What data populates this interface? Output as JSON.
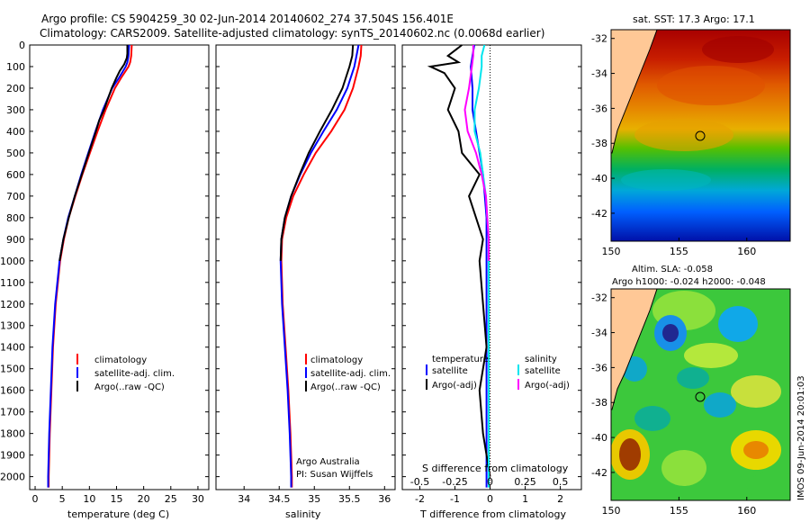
{
  "titles": {
    "line1": "Argo profile: CS 5904259_30 02-Jun-2014 20140602_274 37.504S 156.401E",
    "line2": "Climatology: CARS2009. Satellite-adjusted climatology: synTS_20140602.nc (0.0068d earlier)"
  },
  "colors": {
    "climatology": "#ff0000",
    "satellite": "#0000ff",
    "argo": "#000000",
    "salinity_satellite": "#00e5ee",
    "salinity_argo": "#ff00ff"
  },
  "depth_axis": {
    "ticks": [
      "0",
      "100",
      "200",
      "300",
      "400",
      "500",
      "600",
      "700",
      "800",
      "900",
      "1000",
      "1100",
      "1200",
      "1300",
      "1400",
      "1500",
      "1600",
      "1700",
      "1800",
      "1900",
      "2000"
    ],
    "range": [
      0,
      2060
    ]
  },
  "chart_data": [
    {
      "type": "line",
      "id": "temperature",
      "xlabel": "temperature (deg C)",
      "xlim": [
        -1,
        32
      ],
      "xticks": [
        "0",
        "5",
        "10",
        "15",
        "20",
        "25",
        "30"
      ],
      "legend": [
        "climatology",
        "satellite-adj. clim.",
        "Argo(..raw -QC)"
      ],
      "series": [
        {
          "name": "climatology",
          "depth": [
            0,
            50,
            80,
            100,
            150,
            200,
            300,
            400,
            500,
            600,
            700,
            800,
            900,
            1000,
            1200,
            1400,
            1600,
            1800,
            2000,
            2050
          ],
          "values": [
            17.8,
            17.7,
            17.5,
            17.2,
            15.9,
            14.7,
            13.0,
            11.5,
            10.1,
            8.7,
            7.4,
            6.2,
            5.3,
            4.6,
            3.8,
            3.3,
            3.0,
            2.7,
            2.5,
            2.5
          ]
        },
        {
          "name": "satellite-adj. clim.",
          "depth": [
            0,
            50,
            80,
            100,
            150,
            200,
            300,
            400,
            500,
            600,
            700,
            800,
            900,
            1000,
            1200,
            1400,
            1600,
            1800,
            2000,
            2050
          ],
          "values": [
            17.3,
            17.2,
            17.0,
            16.7,
            15.5,
            14.2,
            12.5,
            11.1,
            9.8,
            8.5,
            7.3,
            6.1,
            5.2,
            4.5,
            3.7,
            3.2,
            2.9,
            2.6,
            2.4,
            2.4
          ]
        },
        {
          "name": "Argo(..raw -QC)",
          "depth": [
            0,
            40,
            60,
            90,
            120,
            150,
            200,
            250,
            300,
            350,
            400,
            500,
            600,
            700,
            800,
            900,
            1000
          ],
          "values": [
            17.0,
            17.0,
            16.9,
            16.4,
            15.6,
            15.0,
            14.1,
            13.4,
            12.7,
            11.8,
            11.2,
            9.9,
            8.6,
            7.3,
            6.2,
            5.2,
            4.5
          ]
        }
      ]
    },
    {
      "type": "line",
      "id": "salinity",
      "xlabel": "salinity",
      "xlim": [
        33.6,
        36.15
      ],
      "xticks": [
        "34",
        "34.5",
        "35",
        "35.5",
        "36"
      ],
      "legend": [
        "climatology",
        "satellite-adj. clim.",
        "Argo(..raw -QC)"
      ],
      "annotations": [
        "Argo Australia",
        "PI: Susan Wijffels"
      ],
      "series": [
        {
          "name": "climatology",
          "depth": [
            0,
            50,
            100,
            200,
            300,
            400,
            500,
            600,
            700,
            800,
            900,
            1000,
            1200,
            1400,
            1600,
            1800,
            2000,
            2050
          ],
          "values": [
            35.67,
            35.66,
            35.63,
            35.55,
            35.43,
            35.24,
            35.02,
            34.85,
            34.7,
            34.6,
            34.54,
            34.53,
            34.55,
            34.59,
            34.63,
            34.66,
            34.68,
            34.68
          ]
        },
        {
          "name": "satellite-adj. clim.",
          "depth": [
            0,
            50,
            100,
            200,
            300,
            400,
            500,
            600,
            700,
            800,
            900,
            1000,
            1200,
            1400,
            1600,
            1800,
            2000,
            2050
          ],
          "values": [
            35.63,
            35.6,
            35.57,
            35.47,
            35.32,
            35.13,
            34.95,
            34.8,
            34.67,
            34.58,
            34.53,
            34.52,
            34.54,
            34.58,
            34.62,
            34.65,
            34.67,
            34.67
          ]
        },
        {
          "name": "Argo(..raw -QC)",
          "depth": [
            0,
            50,
            100,
            150,
            200,
            300,
            400,
            500,
            600,
            700,
            800,
            900,
            1000
          ],
          "values": [
            35.55,
            35.54,
            35.5,
            35.45,
            35.4,
            35.25,
            35.08,
            34.92,
            34.79,
            34.67,
            34.58,
            34.53,
            34.52
          ]
        }
      ]
    },
    {
      "type": "line",
      "id": "differences",
      "xlabel": "T difference from climatology",
      "xlabel_top": "S difference from climatology",
      "xlim": [
        -2.5,
        2.6
      ],
      "xticks": [
        "-2",
        "-1",
        "0",
        "1",
        "2"
      ],
      "xticks_top": [
        "-0.5",
        "-0.25",
        "0",
        "0.25",
        "0.5"
      ],
      "legend_headers": [
        "temperature",
        "salinity"
      ],
      "legend": [
        "satellite",
        "Argo(-adj)",
        "satellite",
        "Argo(-adj)"
      ],
      "series": [
        {
          "name": "temperature satellite",
          "depth": [
            0,
            50,
            100,
            200,
            300,
            400,
            500,
            600,
            700,
            800,
            900,
            1000,
            1200,
            1400,
            1600,
            1800,
            2000,
            2050
          ],
          "values": [
            -0.45,
            -0.5,
            -0.55,
            -0.5,
            -0.5,
            -0.4,
            -0.3,
            -0.2,
            -0.15,
            -0.1,
            -0.1,
            -0.1,
            -0.1,
            -0.1,
            -0.1,
            -0.1,
            -0.1,
            -0.1
          ]
        },
        {
          "name": "temperature Argo(-adj)",
          "depth": [
            0,
            50,
            80,
            100,
            130,
            200,
            300,
            400,
            500,
            600,
            700,
            800,
            900,
            1000,
            1200,
            1400,
            1600,
            1800,
            1900,
            2000
          ],
          "values": [
            -0.8,
            -1.2,
            -0.9,
            -1.7,
            -1.3,
            -1.0,
            -1.2,
            -0.9,
            -0.8,
            -0.3,
            -0.6,
            -0.4,
            -0.2,
            -0.3,
            -0.2,
            -0.1,
            -0.3,
            -0.2,
            -0.1,
            0
          ]
        },
        {
          "name": "salinity satellite",
          "depth": [
            0,
            50,
            100,
            200,
            300,
            400,
            500,
            600,
            700,
            800,
            900,
            1000,
            1200,
            1400,
            1600,
            1800,
            2000,
            2050
          ],
          "values": [
            -0.04,
            -0.06,
            -0.06,
            -0.08,
            -0.11,
            -0.11,
            -0.07,
            -0.05,
            -0.03,
            -0.02,
            -0.01,
            -0.01,
            -0.01,
            -0.01,
            -0.01,
            -0.01,
            -0.01,
            -0.01
          ]
        },
        {
          "name": "salinity Argo(-adj)",
          "depth": [
            0,
            50,
            100,
            200,
            300,
            400,
            500,
            600,
            700,
            800,
            900,
            1000
          ],
          "values": [
            -0.12,
            -0.12,
            -0.13,
            -0.15,
            -0.18,
            -0.16,
            -0.1,
            -0.06,
            -0.03,
            -0.02,
            -0.01,
            -0.01
          ]
        }
      ]
    },
    {
      "type": "heatmap",
      "id": "sst_map",
      "title": "sat. SST: 17.3 Argo: 17.1",
      "xticks": [
        "150",
        "155",
        "160"
      ],
      "yticks": [
        "-32",
        "-34",
        "-36",
        "-38",
        "-40",
        "-42"
      ],
      "marker": {
        "lon": 156.4,
        "lat": -37.5
      }
    },
    {
      "type": "heatmap",
      "id": "sla_map",
      "title_line1": "Altim. SLA: -0.058",
      "title_line2": "Argo h1000: -0.024 h2000: -0.048",
      "xticks": [
        "150",
        "155",
        "160"
      ],
      "yticks": [
        "-32",
        "-34",
        "-36",
        "-38",
        "-40",
        "-42"
      ],
      "marker": {
        "lon": 156.4,
        "lat": -37.5
      }
    }
  ],
  "side_text": "IMOS 09-Jun-2014 20:01:03"
}
